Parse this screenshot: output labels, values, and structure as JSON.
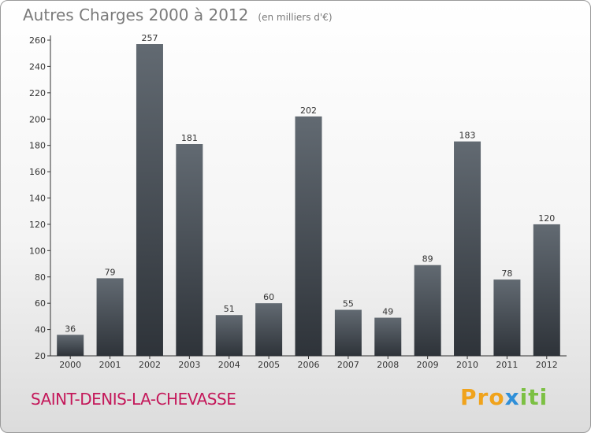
{
  "title": "Autres Charges 2000 à 2012",
  "unit": "(en milliers d'€)",
  "city": "SAINT-DENIS-LA-CHEVASSE",
  "logo": {
    "part1": "Pro",
    "part2": "x",
    "part3": "iti"
  },
  "colors": {
    "bar_top": "#626a72",
    "bar_bottom": "#2e3339",
    "city": "#c4185a"
  },
  "chart_data": {
    "type": "bar",
    "categories": [
      "2000",
      "2001",
      "2002",
      "2003",
      "2004",
      "2005",
      "2006",
      "2007",
      "2008",
      "2009",
      "2010",
      "2011",
      "2012"
    ],
    "values": [
      36,
      79,
      257,
      181,
      51,
      60,
      202,
      55,
      49,
      89,
      183,
      78,
      120
    ],
    "title": "Autres Charges 2000 à 2012",
    "ylim": [
      20,
      260
    ],
    "yticks": [
      20,
      40,
      60,
      80,
      100,
      120,
      140,
      160,
      180,
      200,
      220,
      240,
      260
    ],
    "grid": false,
    "data_labels": true
  }
}
